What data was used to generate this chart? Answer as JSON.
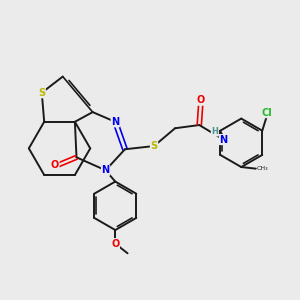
{
  "bg_color": "#ebebeb",
  "C": "#1a1a1a",
  "S": "#b8b800",
  "N": "#0000ee",
  "O": "#ee0000",
  "Cl": "#22bb22",
  "H": "#4a9090",
  "lw": 1.4,
  "dlw": 1.2,
  "fs": 6.5
}
